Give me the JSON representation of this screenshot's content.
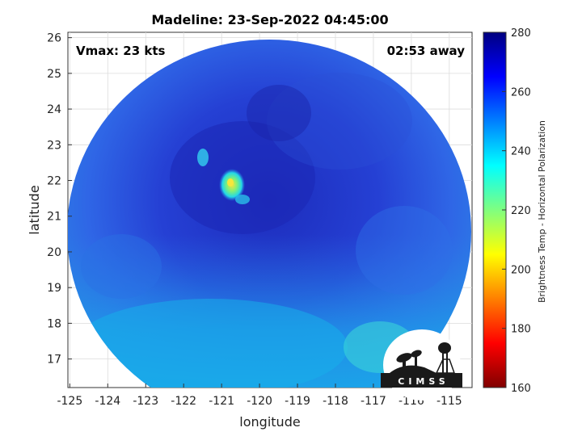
{
  "title": "Madeline: 23-Sep-2022 04:45:00",
  "vmax_text": "Vmax: 23 kts",
  "time_text": "02:53 away",
  "xlabel": "longitude",
  "ylabel": "latitude",
  "x_ticks": [
    "-125",
    "-124",
    "-123",
    "-122",
    "-121",
    "-120",
    "-119",
    "-118",
    "-117",
    "-116",
    "-115"
  ],
  "y_ticks": [
    "17",
    "18",
    "19",
    "20",
    "21",
    "22",
    "23",
    "24",
    "25",
    "26"
  ],
  "colorbar": {
    "label": "Brightness Temp - Horizontal Polarization",
    "ticks": [
      "160",
      "180",
      "200",
      "220",
      "240",
      "260",
      "280"
    ],
    "min": 160,
    "max": 280
  },
  "logo_text": "CIMSS",
  "colors": {
    "deep_blue": "#1f2fc4",
    "mid_blue": "#2f56ea",
    "cyan_edge": "#1c9ce6",
    "eye_warm": "#f3e53a"
  }
}
